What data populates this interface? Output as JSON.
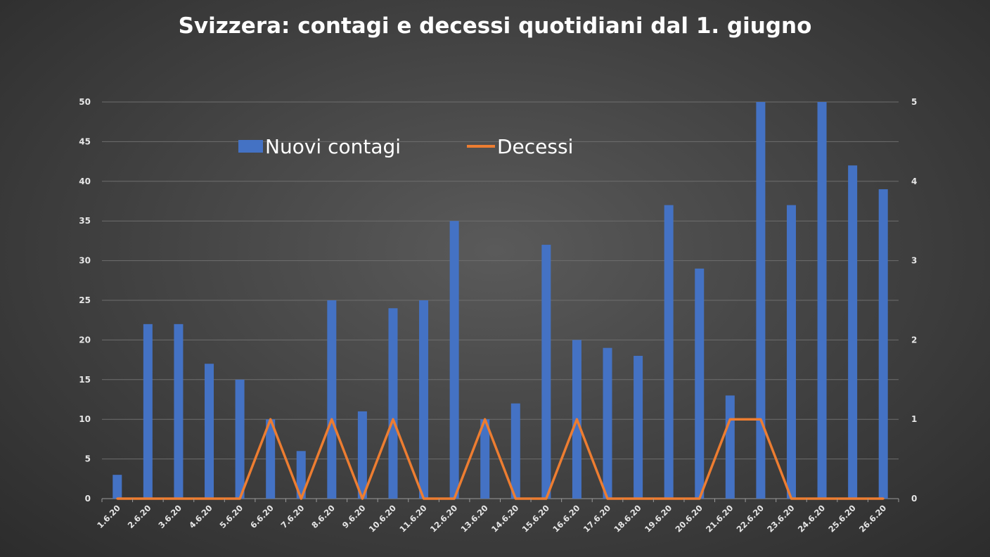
{
  "chart_data": {
    "type": "bar",
    "title": "Svizzera:  contagi e decessi quotidiani dal 1. giugno",
    "categories": [
      "1.6.20",
      "2.6.20",
      "3.6.20",
      "4.6.20",
      "5.6.20",
      "6.6.20",
      "7.6.20",
      "8.6.20",
      "9.6.20",
      "10.6.20",
      "11.6.20",
      "12.6.20",
      "13.6.20",
      "14.6.20",
      "15.6.20",
      "16.6.20",
      "17.6.20",
      "18.6.20",
      "19.6.20",
      "20.6.20",
      "21.6.20",
      "22.6.20",
      "23.6.20",
      "24.6.20",
      "25.6.20",
      "26.6.20"
    ],
    "series": [
      {
        "name": "Nuovi contagi",
        "type": "bar",
        "axis": "left",
        "color": "#4472c4",
        "values": [
          3,
          22,
          22,
          17,
          15,
          10,
          6,
          25,
          11,
          24,
          25,
          35,
          10,
          12,
          32,
          20,
          19,
          18,
          37,
          29,
          13,
          50,
          37,
          50,
          42,
          39
        ]
      },
      {
        "name": "Decessi",
        "type": "line",
        "axis": "right",
        "color": "#ed7d31",
        "values": [
          0,
          0,
          0,
          0,
          0,
          1,
          0,
          1,
          0,
          1,
          0,
          0,
          1,
          0,
          0,
          1,
          0,
          0,
          0,
          0,
          1,
          1,
          0,
          0,
          0,
          0
        ]
      }
    ],
    "ylim_left": [
      0,
      50
    ],
    "yticks_left": [
      "0",
      "5",
      "10",
      "15",
      "20",
      "25",
      "30",
      "35",
      "40",
      "45",
      "50"
    ],
    "ylim_right": [
      0,
      5
    ],
    "yticks_right": [
      "0",
      "1",
      "2",
      "3",
      "4",
      "5"
    ],
    "grid": true,
    "legend": "top-left"
  }
}
